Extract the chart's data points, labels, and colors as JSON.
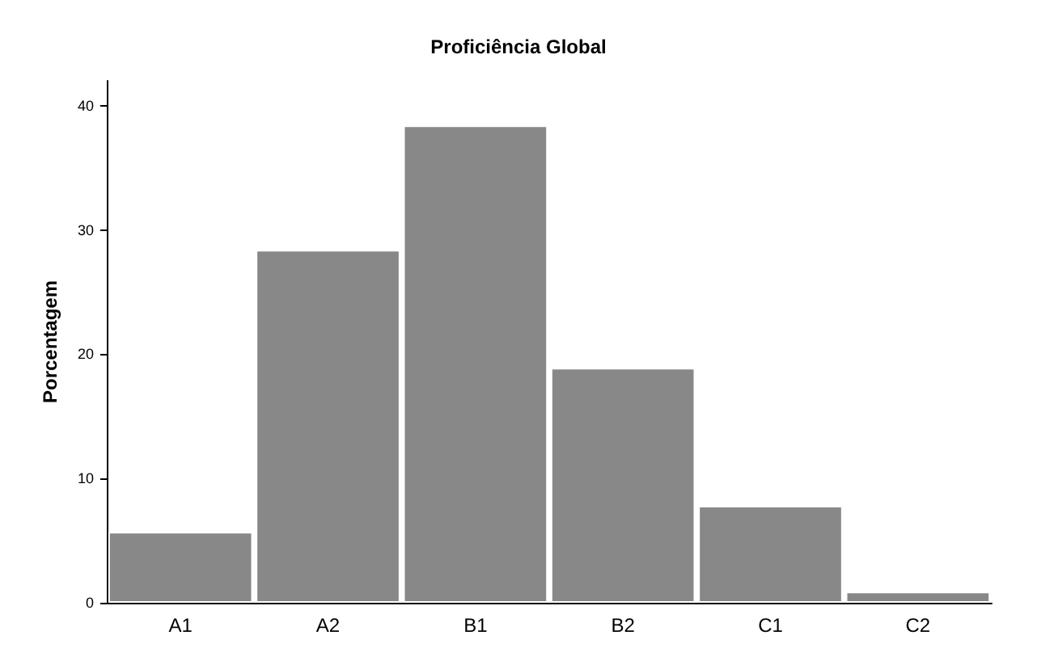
{
  "chart_data": {
    "type": "bar",
    "title": "Proficiência Global",
    "ylabel": "Porcentagem",
    "categories": [
      "A1",
      "A2",
      "B1",
      "B2",
      "C1",
      "C2"
    ],
    "values": [
      5.7,
      28.4,
      38.4,
      18.9,
      7.8,
      0.9
    ],
    "color": "#888888",
    "ylim": [
      0,
      42
    ],
    "yticks": [
      0,
      10,
      20,
      30,
      40
    ],
    "grid": false
  }
}
